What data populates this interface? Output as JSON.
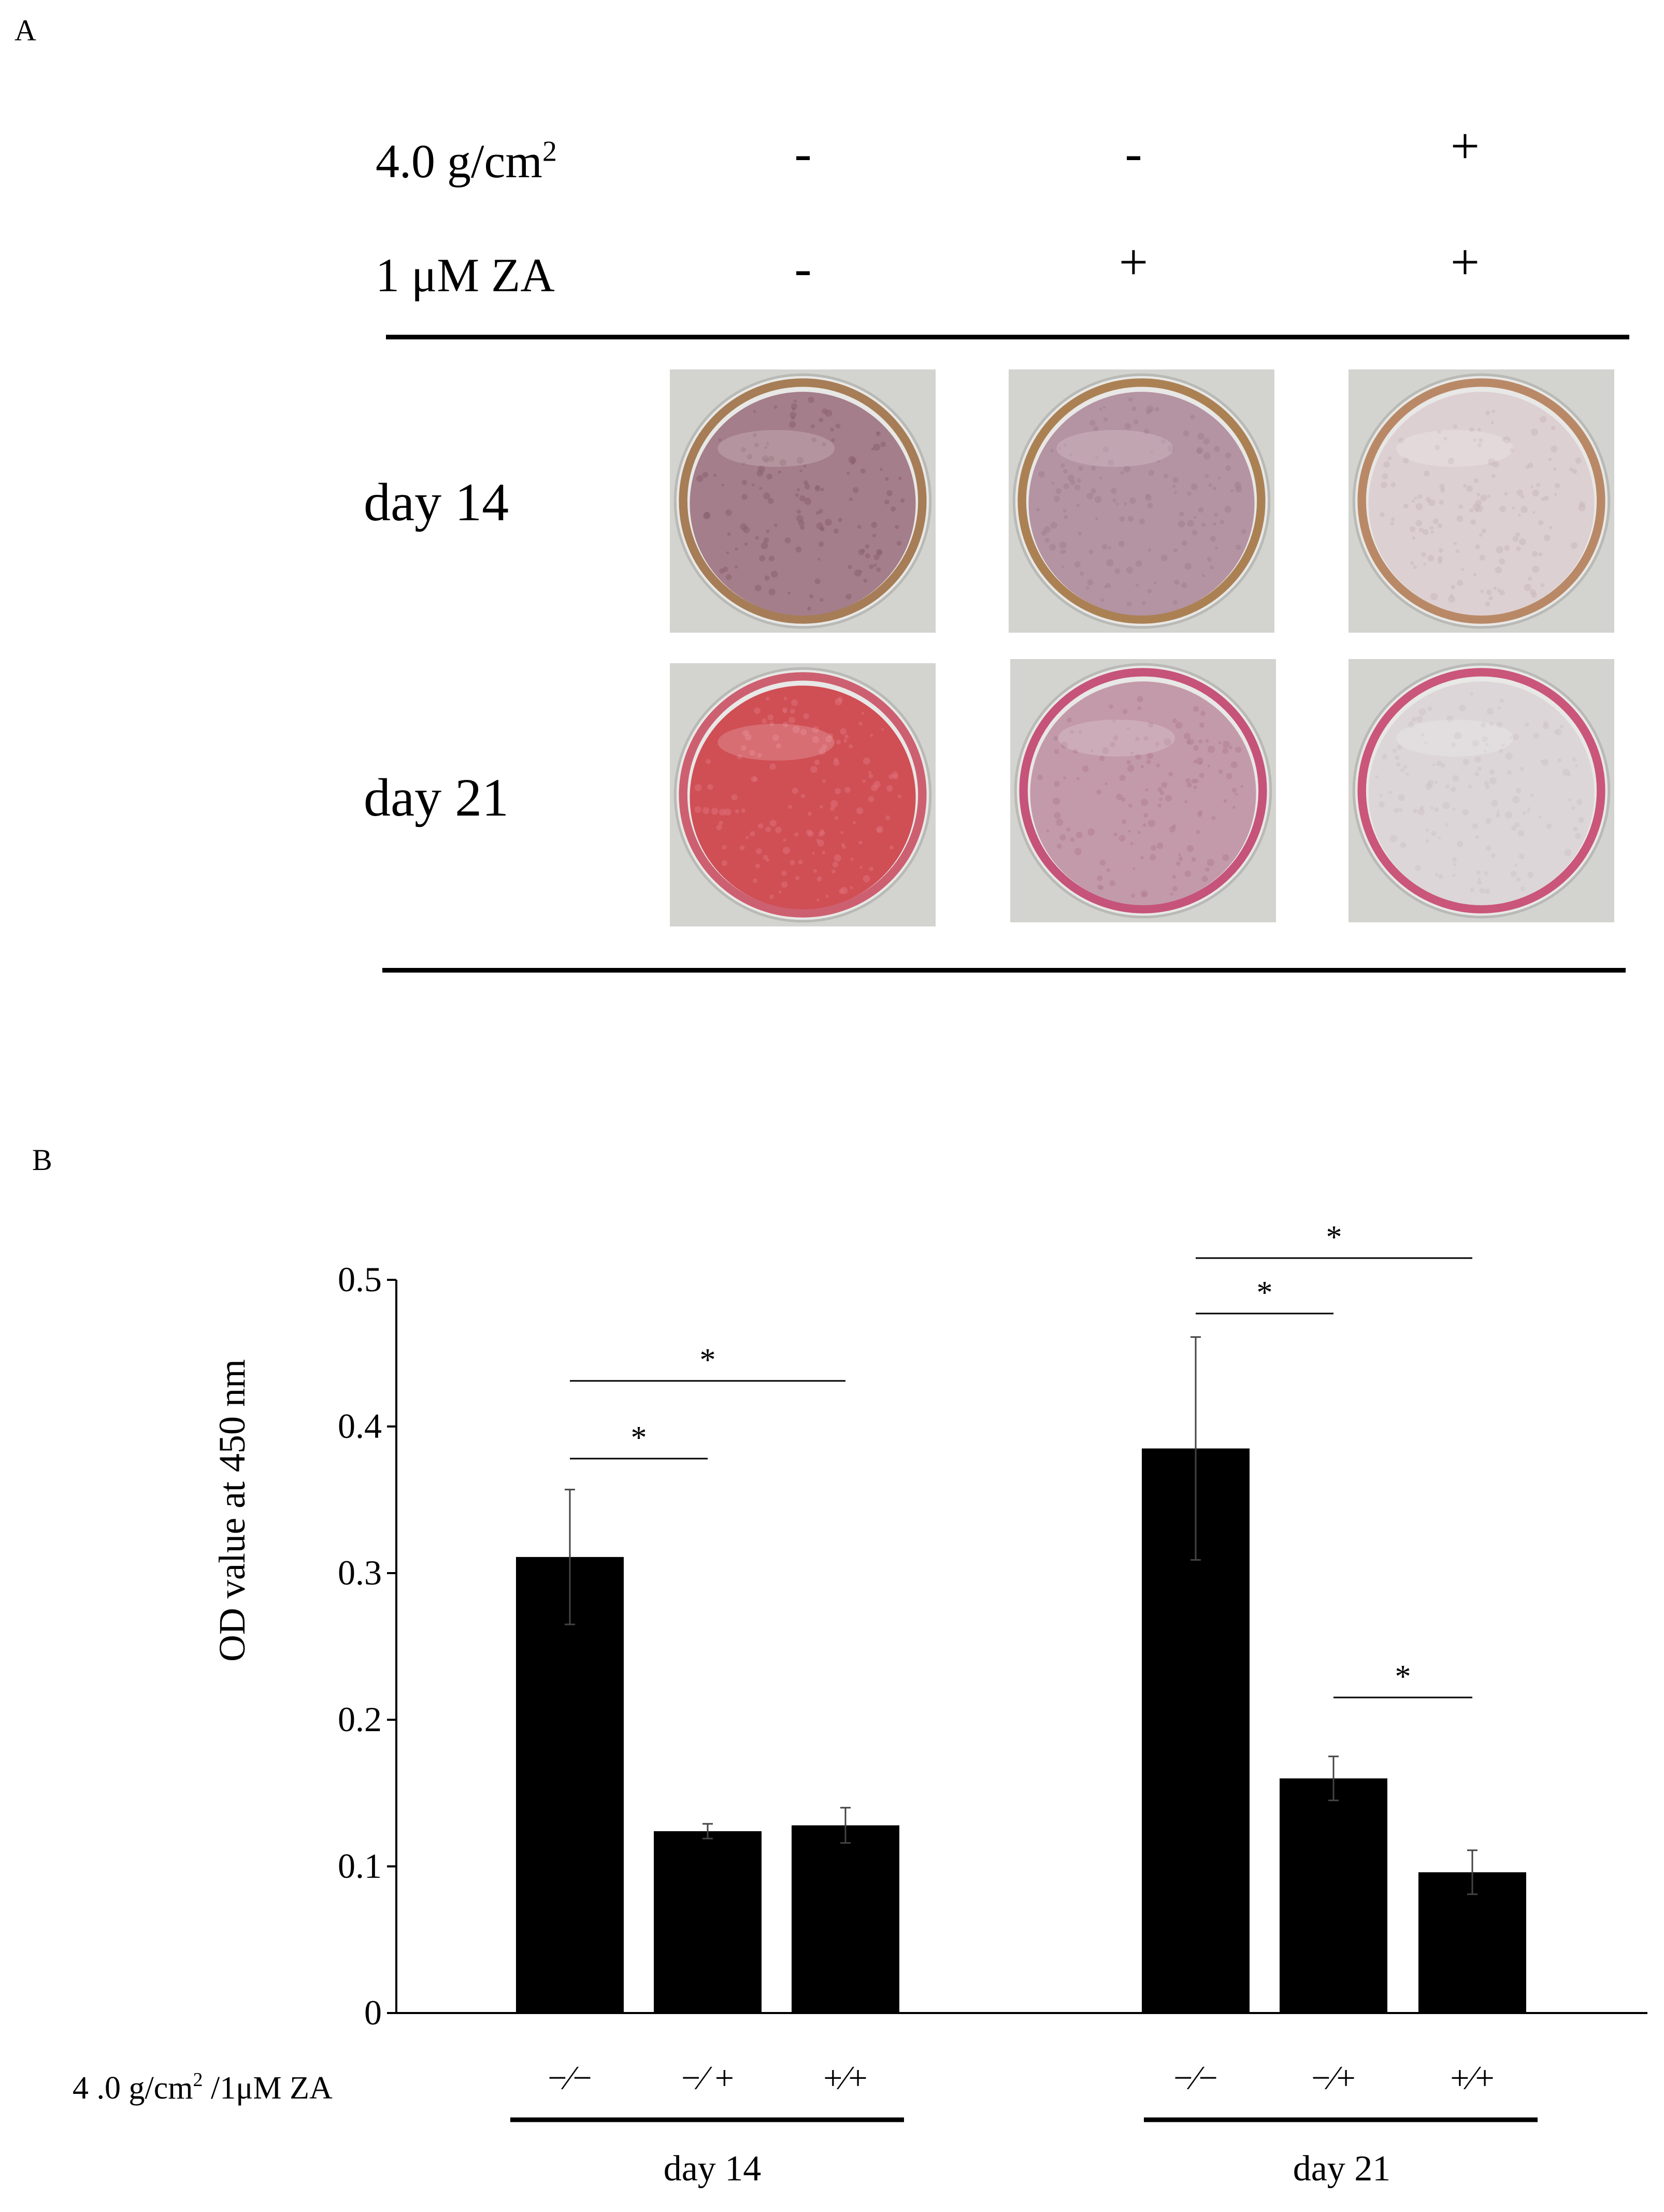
{
  "panel_a": {
    "letter": "A",
    "rows": [
      {
        "label": "4.0 g/cm",
        "sup": "2",
        "signs": [
          "-",
          "-",
          "+"
        ]
      },
      {
        "label": "1 μM ZA",
        "sup": "",
        "signs": [
          "-",
          "+",
          "+"
        ]
      }
    ],
    "days": [
      "day 14",
      "day 21"
    ],
    "wells": [
      {
        "day": "day 14",
        "fill": "#a47e8a",
        "rim": "#9a6a3c",
        "speckle": "#8a6070"
      },
      {
        "day": "day 14",
        "fill": "#b493a2",
        "rim": "#a06e3a",
        "speckle": "#a08090"
      },
      {
        "day": "day 14",
        "fill": "#ddd0d2",
        "rim": "#b07850",
        "speckle": "#c8b8bc"
      },
      {
        "day": "day 21",
        "fill": "#cf4f55",
        "rim": "#c8485a",
        "speckle": "#e07078"
      },
      {
        "day": "day 21",
        "fill": "#c39aaa",
        "rim": "#c03866",
        "speckle": "#b0808e"
      },
      {
        "day": "day 21",
        "fill": "#dcd6d8",
        "rim": "#c43c66",
        "speckle": "#cfc4c8"
      }
    ]
  },
  "panel_b": {
    "letter": "B",
    "condition_label": "4 .0 g/cm",
    "condition_sup": "2",
    "condition_label_tail": " /1μM ZA",
    "bar_labels": [
      "−∕−",
      "−∕ +",
      "+∕+",
      "−∕−",
      "−∕+",
      "+∕+"
    ],
    "group_labels": [
      "day 14",
      "day 21"
    ]
  },
  "chart_data": {
    "type": "bar",
    "ylabel": "OD value at 450 nm",
    "ylim": [
      0,
      0.5
    ],
    "yticks": [
      "0",
      "0.1",
      "0.2",
      "0.3",
      "0.4",
      "0.5"
    ],
    "groups": [
      "day 14",
      "day 21"
    ],
    "series": [
      {
        "values": [
          0.311,
          0.124,
          0.128,
          0.385,
          0.16,
          0.096
        ],
        "errors": [
          0.046,
          0.005,
          0.012,
          0.076,
          0.015,
          0.015
        ]
      }
    ],
    "bar_color": "#000000",
    "significance": [
      {
        "from": 0,
        "to": 1,
        "label": "*"
      },
      {
        "from": 0,
        "to": 2,
        "label": "*"
      },
      {
        "from": 3,
        "to": 4,
        "label": "*"
      },
      {
        "from": 3,
        "to": 5,
        "label": "*"
      },
      {
        "from": 4,
        "to": 5,
        "label": "*"
      }
    ]
  }
}
